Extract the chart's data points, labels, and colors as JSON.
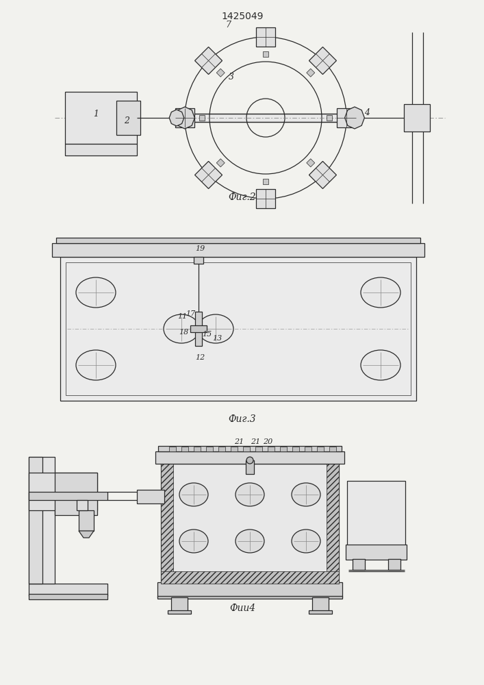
{
  "title": "1425049",
  "fig2_caption": "Фиг.2",
  "fig3_caption": "Фиг.3",
  "fig4_caption": "Фии4",
  "bg_color": "#f2f2ee",
  "line_color": "#2a2a2a",
  "lw": 0.9,
  "tlw": 0.5
}
